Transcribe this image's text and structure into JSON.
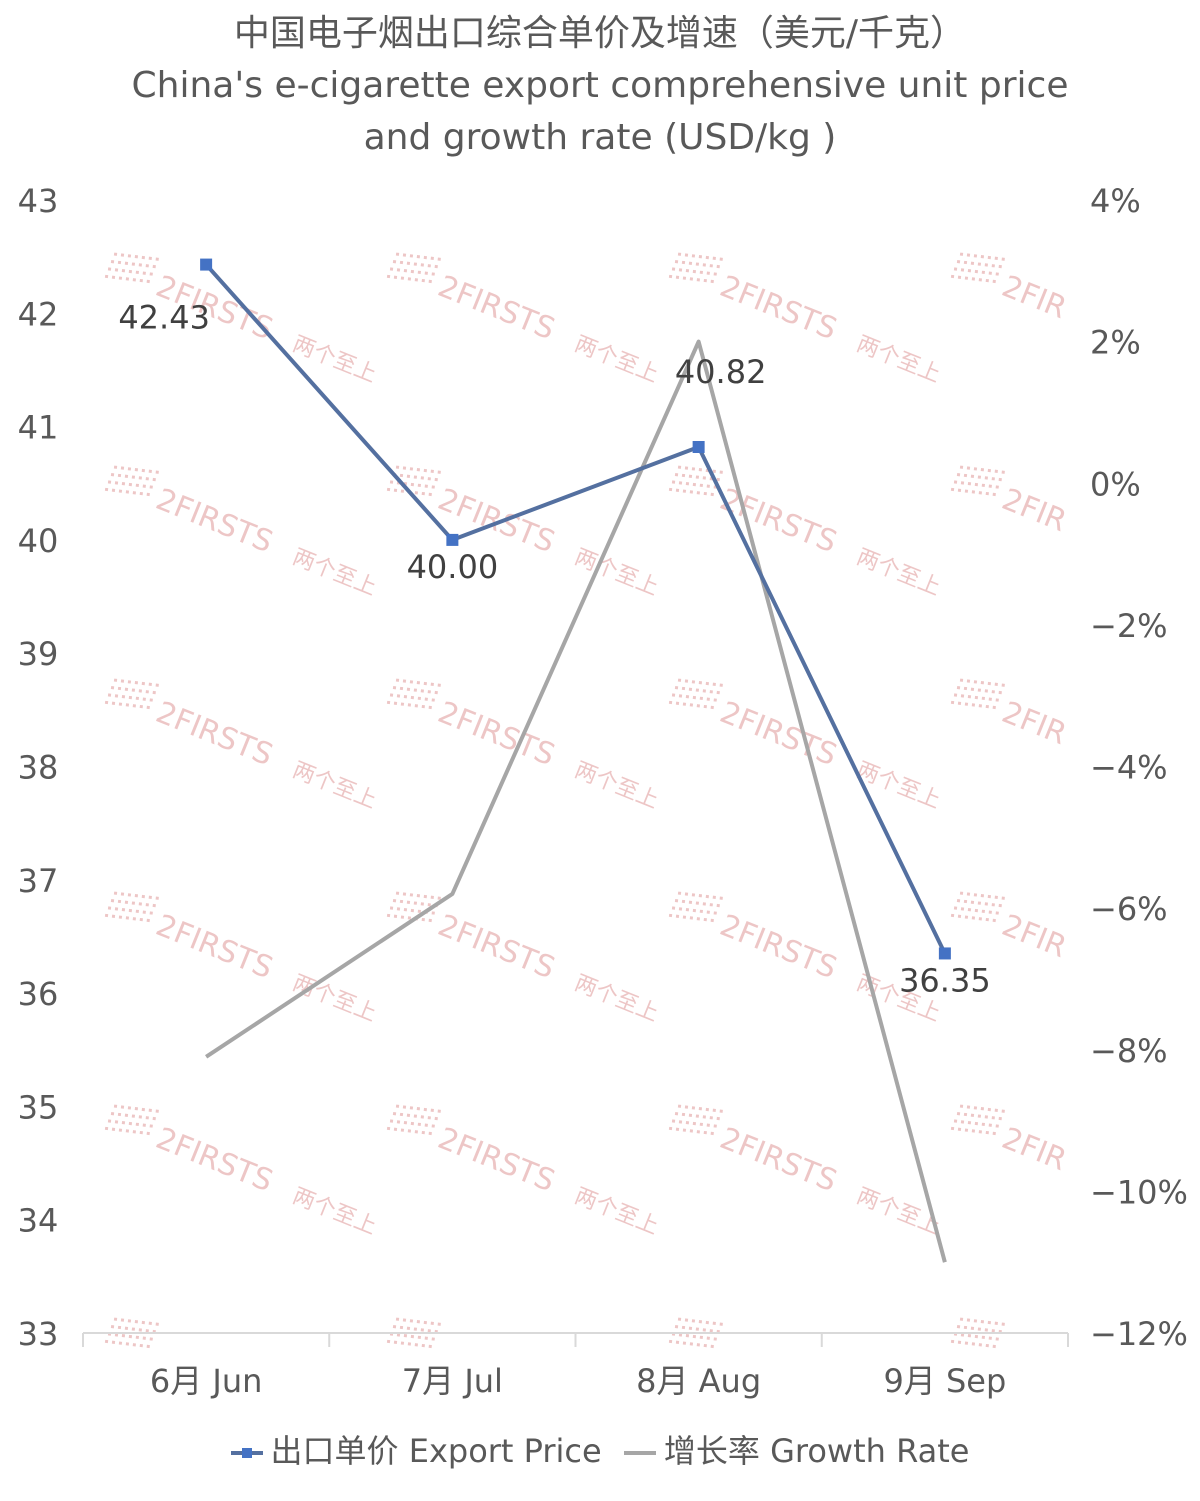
{
  "title": {
    "zh": "中国电子烟出口综合单价及增速（美元/千克）",
    "en": "China's e-cigarette export comprehensive unit price and growth rate (USD/kg )"
  },
  "watermark": {
    "text": "2FIRSTS",
    "text_cn": "两个至上",
    "text_partial": "2FIR",
    "color": "#e8b4b4"
  },
  "chart_data": {
    "type": "line",
    "categories": [
      "6月 Jun",
      "7月 Jul",
      "8月 Aug",
      "9月 Sep"
    ],
    "series": [
      {
        "name": "出口单价 Export Price",
        "axis": "left",
        "values": [
          42.43,
          40.0,
          40.82,
          36.35
        ],
        "data_labels": [
          "42.43",
          "40.00",
          "40.82",
          "36.35"
        ],
        "color": "#5470a0",
        "marker": "square",
        "marker_color": "#4472c4"
      },
      {
        "name": "增长率 Growth Rate",
        "axis": "right",
        "values": [
          -8.1,
          -5.8,
          2.0,
          -11.0
        ],
        "color": "#a6a6a6",
        "marker": "none"
      }
    ],
    "y_left": {
      "min": 33,
      "max": 43,
      "step": 1,
      "ticks": [
        "33",
        "34",
        "35",
        "36",
        "37",
        "38",
        "39",
        "40",
        "41",
        "42",
        "43"
      ]
    },
    "y_right": {
      "min": -12,
      "max": 4,
      "step": 2,
      "ticks": [
        "−12%",
        "−10%",
        "−8%",
        "−6%",
        "−4%",
        "−2%",
        "0%",
        "2%",
        "4%"
      ]
    },
    "grid": false,
    "legend_position": "bottom"
  }
}
